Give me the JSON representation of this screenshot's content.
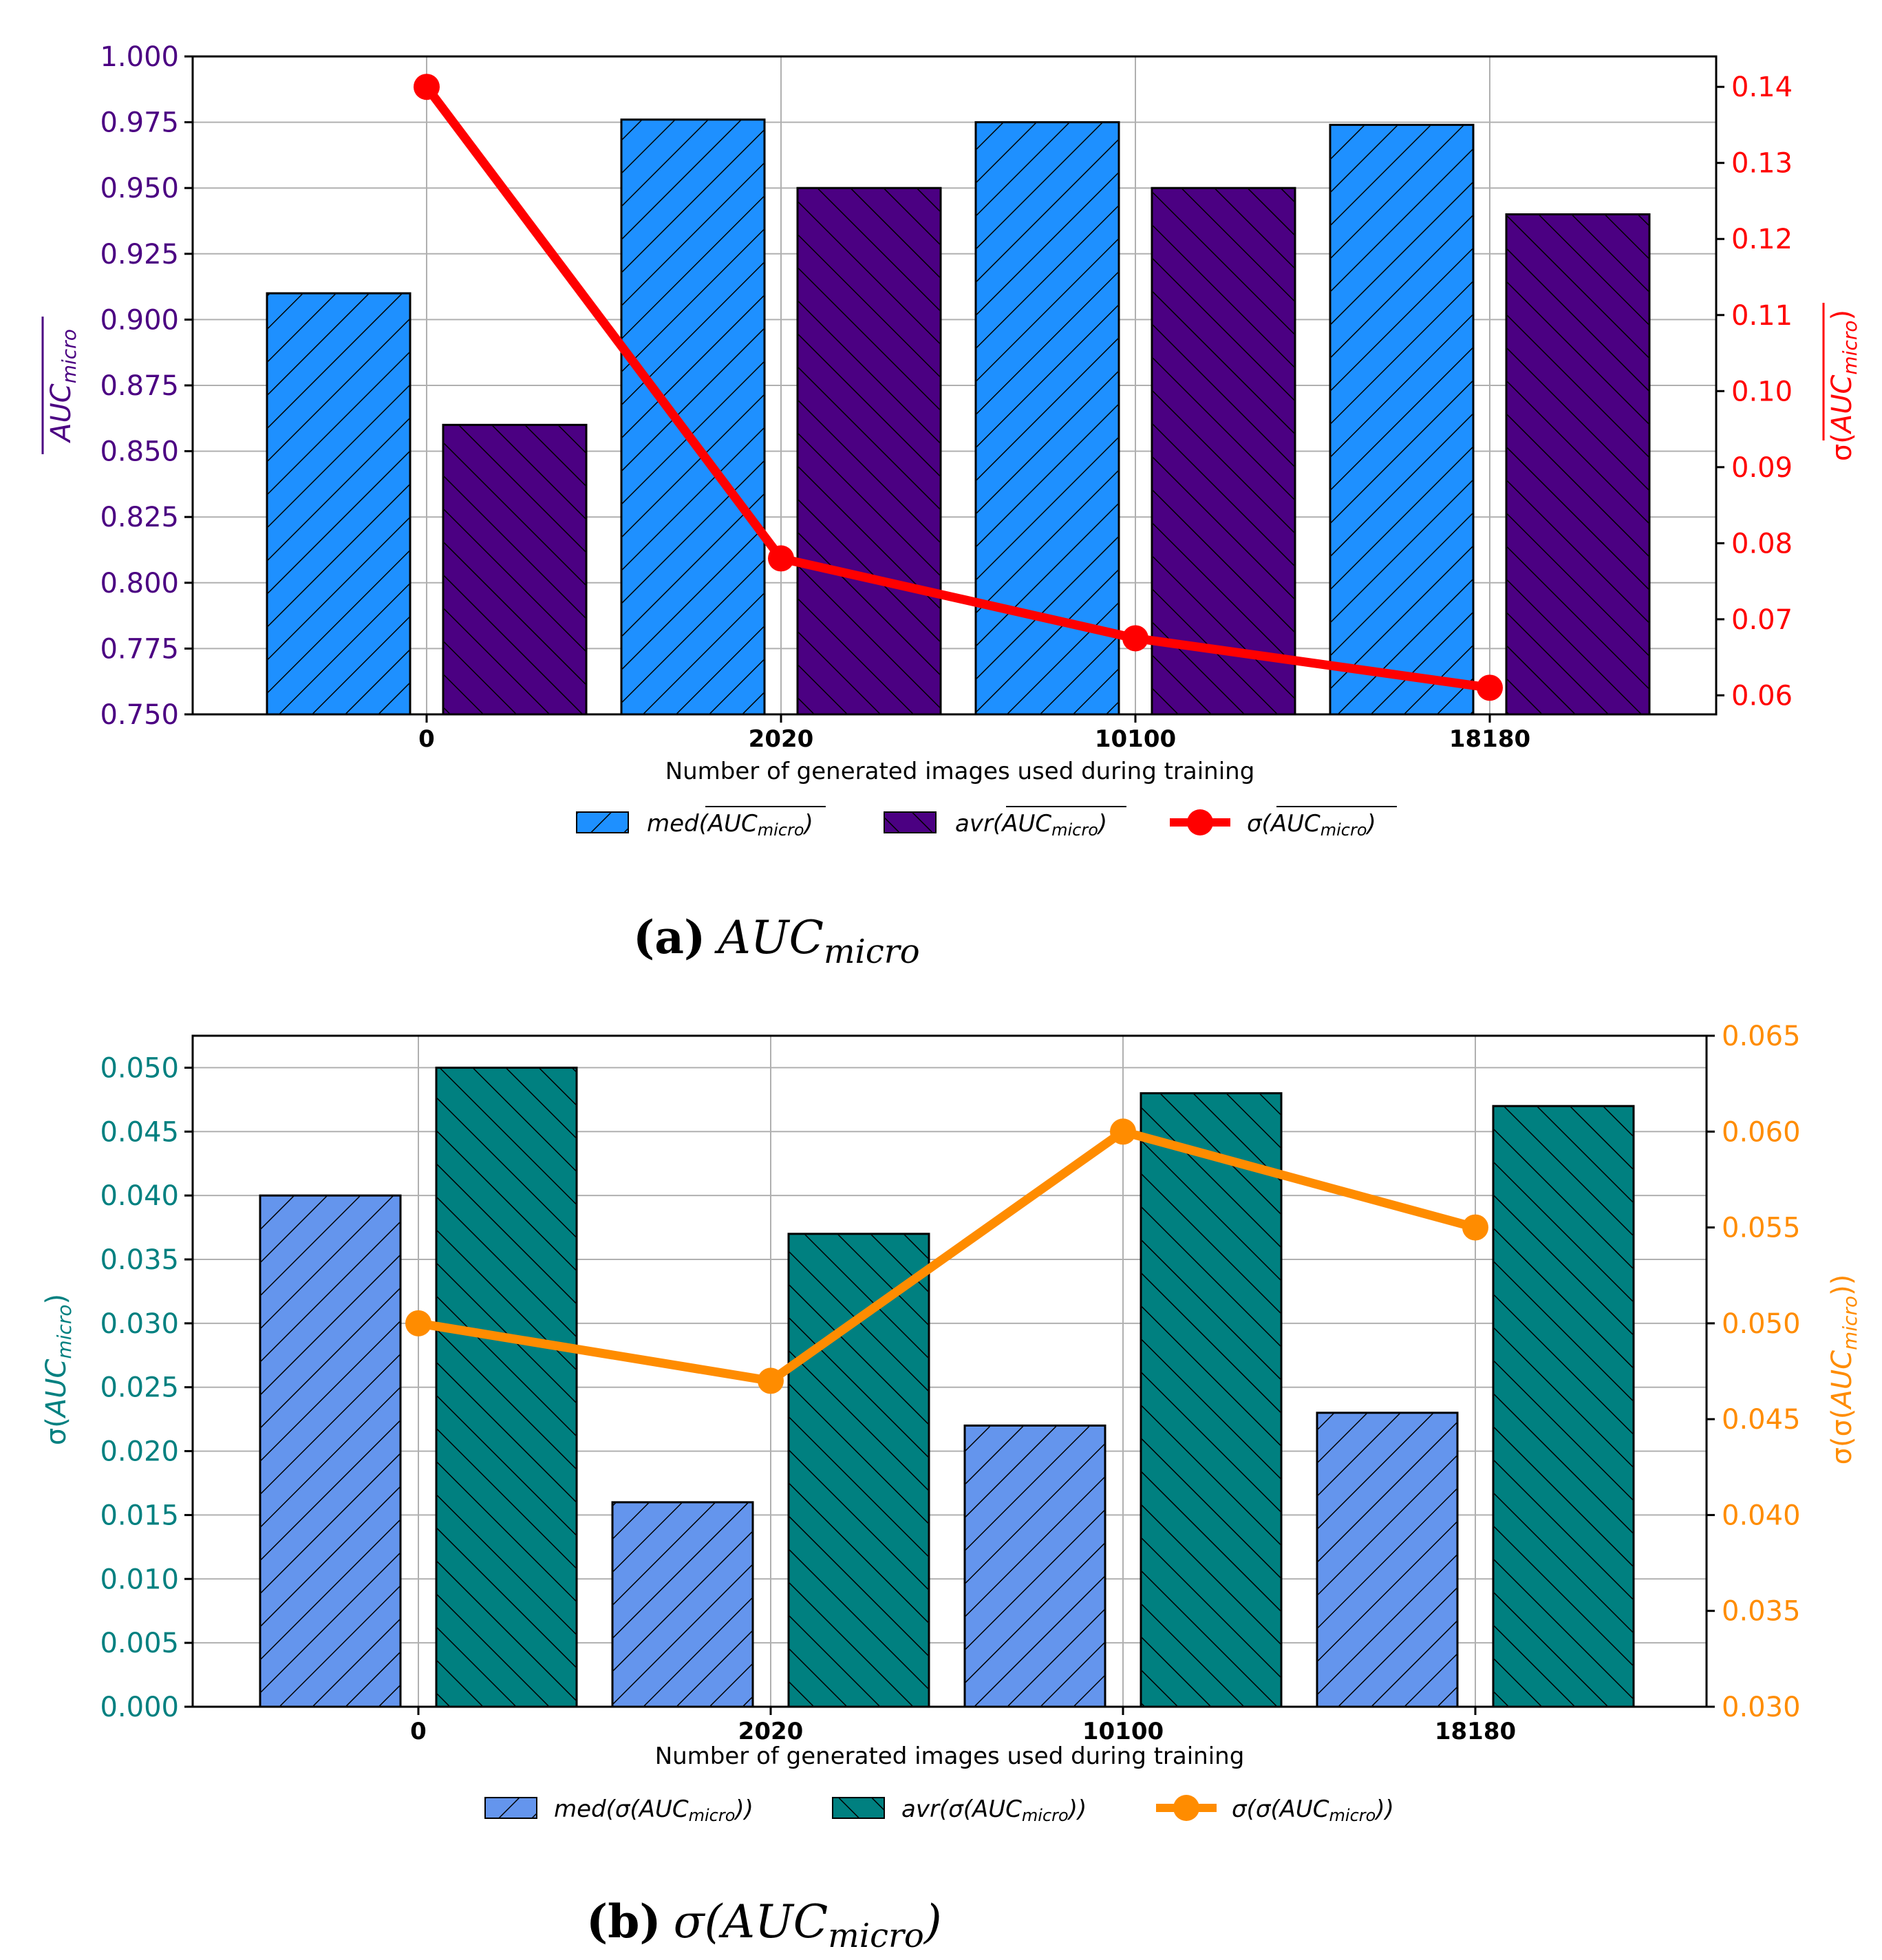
{
  "figures": [
    {
      "caption_letter": "(a)",
      "caption_label": "AUC",
      "caption_sub": "micro",
      "xlabel": "Number of generated images used during training",
      "left_axis_label_main": "AUC",
      "left_axis_label_sub": "micro",
      "right_axis_label_prefix": "σ(",
      "right_axis_label_main": "AUC",
      "right_axis_label_sub": "micro",
      "right_axis_label_suffix": ")",
      "left_tick_labels": [
        "0.750",
        "0.775",
        "0.800",
        "0.825",
        "0.850",
        "0.875",
        "0.900",
        "0.925",
        "0.950",
        "0.975",
        "1.000"
      ],
      "right_tick_labels": [
        "0.06",
        "0.07",
        "0.08",
        "0.09",
        "0.10",
        "0.11",
        "0.12",
        "0.13",
        "0.14"
      ],
      "legend": [
        {
          "prefix": "med(",
          "main": "AUC",
          "sub": "micro",
          "suffix": ")"
        },
        {
          "prefix": "avr(",
          "main": "AUC",
          "sub": "micro",
          "suffix": ")"
        },
        {
          "prefix": "σ(",
          "main": "AUC",
          "sub": "micro",
          "suffix": ")"
        }
      ]
    },
    {
      "caption_letter": "(b)",
      "caption_prefix": "σ(",
      "caption_label": "AUC",
      "caption_sub": "micro",
      "caption_suffix": ")",
      "xlabel": "Number of generated images used during training",
      "left_axis_label_prefix": "σ(",
      "left_axis_label_main": "AUC",
      "left_axis_label_sub": "micro",
      "left_axis_label_suffix": ")",
      "right_axis_label_prefix": "σ(σ(",
      "right_axis_label_main": "AUC",
      "right_axis_label_sub": "micro",
      "right_axis_label_suffix": "))",
      "left_tick_labels": [
        "0.000",
        "0.005",
        "0.010",
        "0.015",
        "0.020",
        "0.025",
        "0.030",
        "0.035",
        "0.040",
        "0.045",
        "0.050"
      ],
      "right_tick_labels": [
        "0.030",
        "0.035",
        "0.040",
        "0.045",
        "0.050",
        "0.055",
        "0.060",
        "0.065"
      ],
      "legend": [
        {
          "prefix": "med(σ(",
          "main": "AUC",
          "sub": "micro",
          "suffix": "))"
        },
        {
          "prefix": "avr(σ(",
          "main": "AUC",
          "sub": "micro",
          "suffix": "))"
        },
        {
          "prefix": "σ(σ(",
          "main": "AUC",
          "sub": "micro",
          "suffix": "))"
        }
      ]
    }
  ],
  "chart_data": [
    {
      "type": "bar",
      "categories": [
        "0",
        "2020",
        "10100",
        "18180"
      ],
      "series": [
        {
          "name": "med(AUC_micro)",
          "axis": "left",
          "color": "#1e90ff",
          "hatch": "forward",
          "values": [
            0.91,
            0.976,
            0.975,
            0.974
          ]
        },
        {
          "name": "avr(AUC_micro)",
          "axis": "left",
          "color": "#4b0082",
          "hatch": "back",
          "values": [
            0.86,
            0.95,
            0.95,
            0.94
          ]
        },
        {
          "name": "σ(AUC_micro)",
          "axis": "right",
          "type": "line",
          "color": "#ff0000",
          "values": [
            0.14,
            0.078,
            0.0675,
            0.061
          ]
        }
      ],
      "ylim_left": [
        0.75,
        1.0
      ],
      "ylim_right": [
        0.0575,
        0.144
      ],
      "left_color": "#4b0082",
      "right_color": "#ff0000",
      "grid": true,
      "legend_position": "below"
    },
    {
      "type": "bar",
      "categories": [
        "0",
        "2020",
        "10100",
        "18180"
      ],
      "series": [
        {
          "name": "med(σ(AUC_micro))",
          "axis": "left",
          "color": "#6495ed",
          "hatch": "forward",
          "values": [
            0.04,
            0.016,
            0.022,
            0.023
          ]
        },
        {
          "name": "avr(σ(AUC_micro))",
          "axis": "left",
          "color": "#008080",
          "hatch": "back",
          "values": [
            0.05,
            0.037,
            0.048,
            0.047
          ]
        },
        {
          "name": "σ(σ(AUC_micro))",
          "axis": "right",
          "type": "line",
          "color": "#ff8c00",
          "values": [
            0.05,
            0.047,
            0.06,
            0.055
          ]
        }
      ],
      "ylim_left": [
        0.0,
        0.0525
      ],
      "ylim_right": [
        0.03,
        0.065
      ],
      "left_color": "#008080",
      "right_color": "#ff8c00",
      "grid": true,
      "legend_position": "below"
    }
  ]
}
